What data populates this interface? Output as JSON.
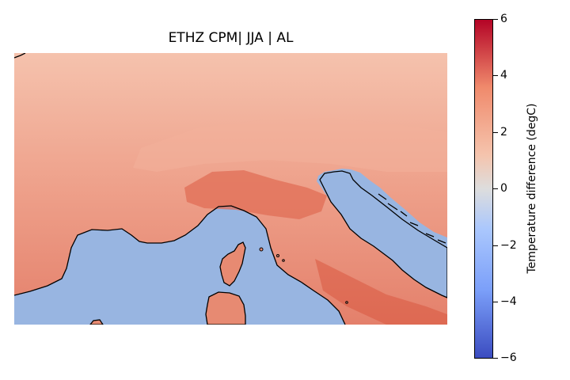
{
  "title": "ETHZ CPM| JJA | AL",
  "colorbar": {
    "label": "Temperature difference (degC)",
    "min": -6,
    "max": 6,
    "ticks": [
      "6",
      "4",
      "2",
      "0",
      "−2",
      "−4",
      "−6"
    ],
    "colormap": "coolwarm",
    "colors": {
      "low": "#3b4cc0",
      "mid": "#dddddd",
      "high": "#b40426"
    }
  },
  "map": {
    "region": "Alps / Italy",
    "sea_color": "#98b5e1",
    "coastline_color": "#000000"
  },
  "chart_data": {
    "type": "heatmap",
    "title": "ETHZ CPM| JJA | AL",
    "colorbar_label": "Temperature difference (degC)",
    "vmin": -6,
    "vmax": 6
  }
}
